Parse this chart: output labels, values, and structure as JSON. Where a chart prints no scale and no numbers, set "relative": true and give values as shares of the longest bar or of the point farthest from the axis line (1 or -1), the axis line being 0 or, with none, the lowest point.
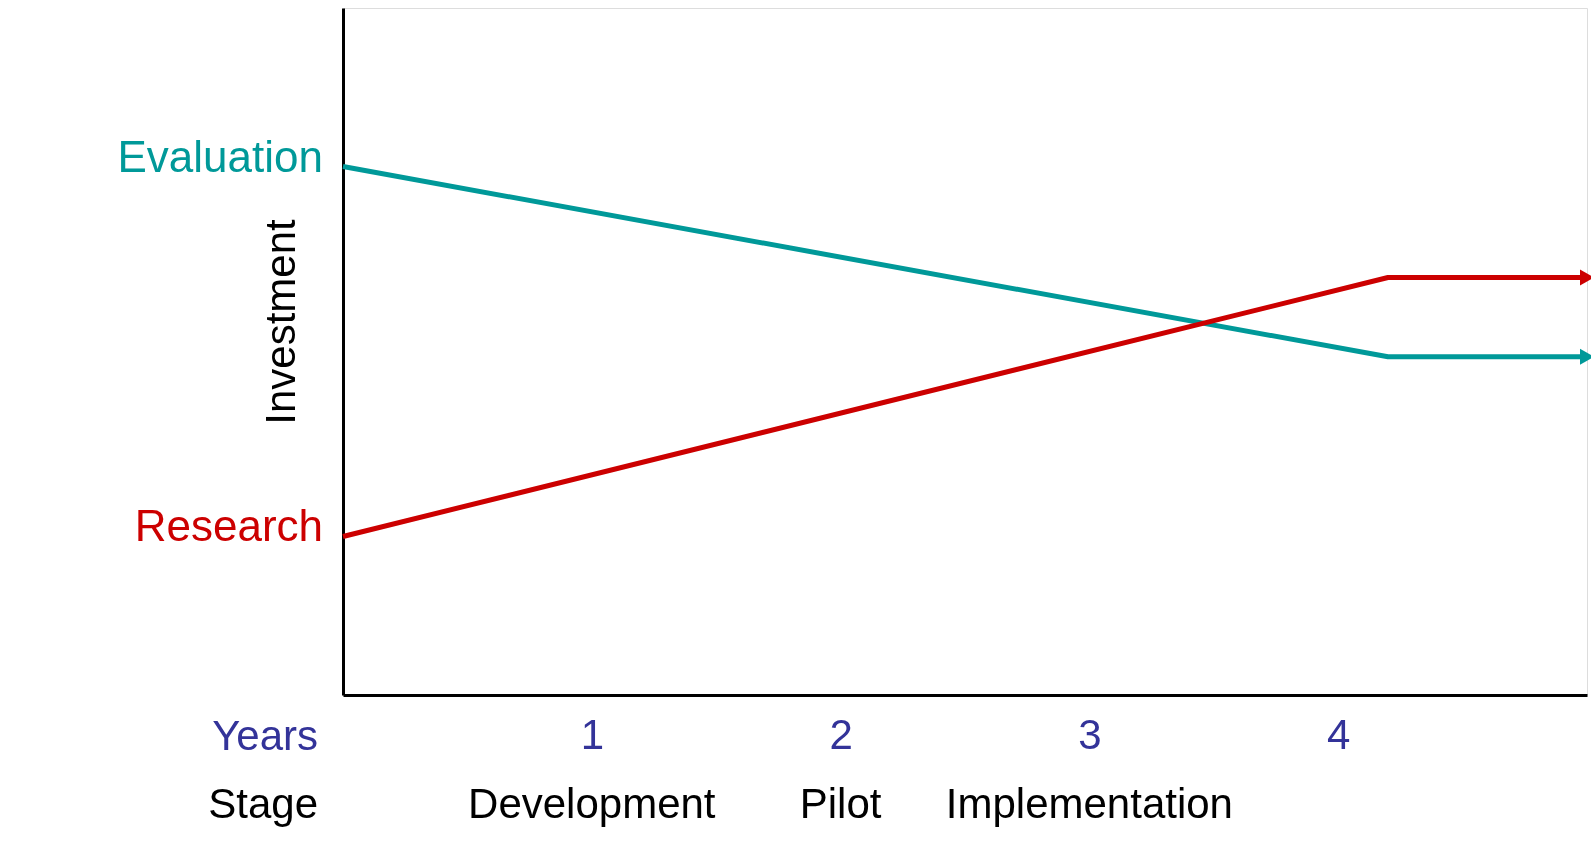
{
  "chart_data": {
    "type": "line",
    "relative": true,
    "ylabel": "Investment",
    "xlabel": "Years",
    "xlim": [
      0,
      5
    ],
    "xticks": [
      1,
      2,
      3,
      4
    ],
    "grid": false,
    "marker": "none",
    "line_style": "solid",
    "annotations": [
      "Stage",
      "Development",
      "Pilot",
      "Implementation"
    ],
    "series": [
      {
        "name": "Evaluation",
        "color": "#009999",
        "x": [
          0,
          4.2,
          5
        ],
        "values": [
          1,
          0.64,
          0.64
        ]
      },
      {
        "name": "Research",
        "color": "#cc0000",
        "x": [
          0,
          4.2,
          5
        ],
        "values": [
          0.3,
          0.79,
          0.79
        ]
      }
    ]
  }
}
